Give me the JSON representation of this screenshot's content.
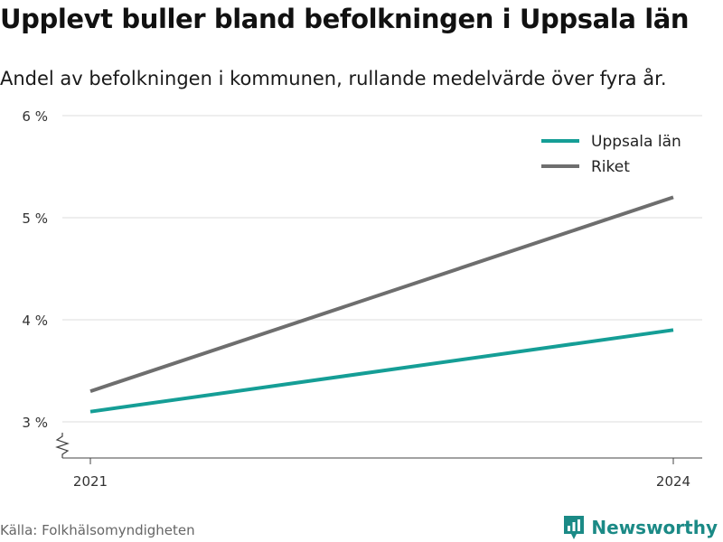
{
  "title": "Upplevt buller bland befolkningen i Uppsala län",
  "subtitle": "Andel av befolkningen i kommunen, rullande medelvärde över fyra år.",
  "source": "Källa: Folkhälsomyndigheten",
  "brand": {
    "name": "Newsworthy",
    "icon": "newsworthy-logo-icon"
  },
  "colors": {
    "accent": "#1b8a86",
    "grid": "#dddddd"
  },
  "chart_data": {
    "type": "line",
    "x": [
      "2021",
      "2024"
    ],
    "series": [
      {
        "name": "Uppsala län",
        "values": [
          3.1,
          3.9
        ],
        "color": "#159e96"
      },
      {
        "name": "Riket",
        "values": [
          3.3,
          5.2
        ],
        "color": "#6e6e6e"
      }
    ],
    "ylim": [
      3,
      6
    ],
    "y_ticks": [
      "3 %",
      "4 %",
      "5 %",
      "6 %"
    ],
    "y_tick_values": [
      3,
      4,
      5,
      6
    ],
    "axis_break": true,
    "grid": true,
    "legend_position": "top-right"
  }
}
